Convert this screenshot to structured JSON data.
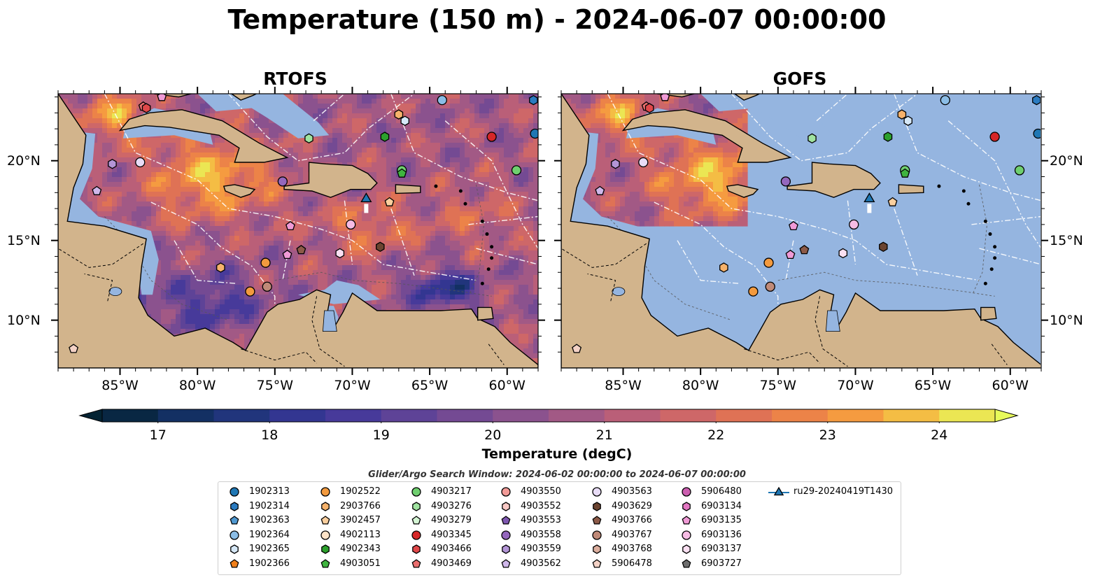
{
  "title": "Temperature (150 m) - 2024-06-07 00:00:00",
  "panels": [
    {
      "title": "RTOFS",
      "mode": "rtofs"
    },
    {
      "title": "GOFS",
      "mode": "gofs"
    }
  ],
  "map": {
    "lon_range": [
      -89,
      -58
    ],
    "lat_range": [
      7,
      24.2
    ],
    "lon_ticks": [
      "85°W",
      "80°W",
      "75°W",
      "70°W",
      "65°W",
      "60°W"
    ],
    "lat_ticks": [
      "20°N",
      "15°N",
      "10°N"
    ],
    "land_color": "#d2b48c",
    "shelf_color": "#95b5e0",
    "gofs_cutoff": {
      "lon": -77,
      "lat": 16
    }
  },
  "colorbar": {
    "label": "Temperature (degC)",
    "vmin": 16.5,
    "vmax": 24.5,
    "step": 0.5,
    "ticks": [
      "17",
      "18",
      "19",
      "20",
      "21",
      "22",
      "23",
      "24"
    ],
    "colormap": "thermal"
  },
  "search_window": "Glider/Argo Search Window: 2024-06-02 00:00:00 to 2024-06-07 00:00:00",
  "legend": [
    {
      "id": "1902313",
      "marker": "circle",
      "color": "#1f77b4"
    },
    {
      "id": "1902314",
      "marker": "hexagon",
      "color": "#2b7bc0"
    },
    {
      "id": "1902363",
      "marker": "pentagon",
      "color": "#4f98d0"
    },
    {
      "id": "1902364",
      "marker": "circle",
      "color": "#8bbde6"
    },
    {
      "id": "1902365",
      "marker": "hexagon",
      "color": "#d6e8f7"
    },
    {
      "id": "1902366",
      "marker": "pentagon",
      "color": "#f07f1a"
    },
    {
      "id": "1902522",
      "marker": "circle",
      "color": "#f39a3e"
    },
    {
      "id": "2903766",
      "marker": "hexagon",
      "color": "#f6b26b"
    },
    {
      "id": "3902457",
      "marker": "pentagon",
      "color": "#fbcf9e"
    },
    {
      "id": "4902113",
      "marker": "circle",
      "color": "#fde3c8"
    },
    {
      "id": "4902343",
      "marker": "hexagon",
      "color": "#2ca02c"
    },
    {
      "id": "4903051",
      "marker": "pentagon",
      "color": "#3fb43f"
    },
    {
      "id": "4903217",
      "marker": "circle",
      "color": "#6fcf6f"
    },
    {
      "id": "4903276",
      "marker": "hexagon",
      "color": "#a0e3a0"
    },
    {
      "id": "4903279",
      "marker": "pentagon",
      "color": "#d4f5d4"
    },
    {
      "id": "4903345",
      "marker": "circle",
      "color": "#d62728"
    },
    {
      "id": "4903466",
      "marker": "hexagon",
      "color": "#e0484a"
    },
    {
      "id": "4903469",
      "marker": "pentagon",
      "color": "#ea6e6e"
    },
    {
      "id": "4903550",
      "marker": "circle",
      "color": "#f29a97"
    },
    {
      "id": "4903552",
      "marker": "hexagon",
      "color": "#f8c8c4"
    },
    {
      "id": "4903553",
      "marker": "pentagon",
      "color": "#7e57b0"
    },
    {
      "id": "4903558",
      "marker": "circle",
      "color": "#9467bd"
    },
    {
      "id": "4903559",
      "marker": "hexagon",
      "color": "#b395d6"
    },
    {
      "id": "4903562",
      "marker": "pentagon",
      "color": "#cfb7ea"
    },
    {
      "id": "4903563",
      "marker": "circle",
      "color": "#e8dcf6"
    },
    {
      "id": "4903629",
      "marker": "hexagon",
      "color": "#6b4430"
    },
    {
      "id": "4903766",
      "marker": "pentagon",
      "color": "#8c5a48"
    },
    {
      "id": "4903767",
      "marker": "circle",
      "color": "#c08a78"
    },
    {
      "id": "4903768",
      "marker": "hexagon",
      "color": "#dcae9e"
    },
    {
      "id": "5906478",
      "marker": "pentagon",
      "color": "#f4d2c6"
    },
    {
      "id": "5906480",
      "marker": "circle",
      "color": "#cc5eb0"
    },
    {
      "id": "6903134",
      "marker": "hexagon",
      "color": "#e377c2"
    },
    {
      "id": "6903135",
      "marker": "pentagon",
      "color": "#f09ad6"
    },
    {
      "id": "6903136",
      "marker": "circle",
      "color": "#f6bce4"
    },
    {
      "id": "6903137",
      "marker": "hexagon",
      "color": "#fbe0f2"
    },
    {
      "id": "6903727",
      "marker": "pentagon",
      "color": "#6e6e6e"
    },
    {
      "id": "ru29-20240419T1430",
      "marker": "triangle-line",
      "color": "#1f77b4"
    }
  ],
  "floats": [
    {
      "lon": -83.5,
      "lat": 23.4,
      "marker": "pentagon",
      "color": "#ea6e6e"
    },
    {
      "lon": -83.3,
      "lat": 23.3,
      "marker": "hexagon",
      "color": "#e0484a"
    },
    {
      "lon": -82.3,
      "lat": 24.0,
      "marker": "pentagon",
      "color": "#f09ad6"
    },
    {
      "lon": -64.2,
      "lat": 23.8,
      "marker": "circle",
      "color": "#8bbde6"
    },
    {
      "lon": -58.3,
      "lat": 23.8,
      "marker": "hexagon",
      "color": "#2b7bc0"
    },
    {
      "lon": -67.0,
      "lat": 22.9,
      "marker": "hexagon",
      "color": "#f6b26b"
    },
    {
      "lon": -66.6,
      "lat": 22.5,
      "marker": "hexagon",
      "color": "#d6e8f7"
    },
    {
      "lon": -58.2,
      "lat": 21.7,
      "marker": "circle",
      "color": "#1f77b4"
    },
    {
      "lon": -61.0,
      "lat": 21.5,
      "marker": "circle",
      "color": "#d62728"
    },
    {
      "lon": -72.8,
      "lat": 21.4,
      "marker": "hexagon",
      "color": "#a0e3a0"
    },
    {
      "lon": -67.9,
      "lat": 21.5,
      "marker": "hexagon",
      "color": "#2ca02c"
    },
    {
      "lon": -85.5,
      "lat": 19.8,
      "marker": "hexagon",
      "color": "#b395d6"
    },
    {
      "lon": -83.7,
      "lat": 19.9,
      "marker": "circle",
      "color": "#e8dcf6"
    },
    {
      "lon": -66.8,
      "lat": 19.4,
      "marker": "circle",
      "color": "#6fcf6f"
    },
    {
      "lon": -66.8,
      "lat": 19.2,
      "marker": "pentagon",
      "color": "#3fb43f"
    },
    {
      "lon": -59.4,
      "lat": 19.4,
      "marker": "circle",
      "color": "#6fcf6f"
    },
    {
      "lon": -74.5,
      "lat": 18.7,
      "marker": "circle",
      "color": "#9467bd"
    },
    {
      "lon": -86.5,
      "lat": 18.1,
      "marker": "pentagon",
      "color": "#cfb7ea"
    },
    {
      "lon": -67.6,
      "lat": 17.4,
      "marker": "pentagon",
      "color": "#fbcf9e"
    },
    {
      "lon": -74.0,
      "lat": 15.9,
      "marker": "pentagon",
      "color": "#f09ad6"
    },
    {
      "lon": -70.1,
      "lat": 16.0,
      "marker": "circle",
      "color": "#f6bce4"
    },
    {
      "lon": -73.3,
      "lat": 14.4,
      "marker": "pentagon",
      "color": "#8c5a48"
    },
    {
      "lon": -74.2,
      "lat": 14.1,
      "marker": "pentagon",
      "color": "#f09ad6"
    },
    {
      "lon": -70.8,
      "lat": 14.2,
      "marker": "hexagon",
      "color": "#fbe0f2"
    },
    {
      "lon": -68.2,
      "lat": 14.6,
      "marker": "hexagon",
      "color": "#6b4430"
    },
    {
      "lon": -75.6,
      "lat": 13.6,
      "marker": "circle",
      "color": "#f39a3e"
    },
    {
      "lon": -78.5,
      "lat": 13.3,
      "marker": "hexagon",
      "color": "#f6b26b"
    },
    {
      "lon": -76.6,
      "lat": 11.8,
      "marker": "circle",
      "color": "#f39a3e"
    },
    {
      "lon": -75.5,
      "lat": 12.1,
      "marker": "circle",
      "color": "#c08a78"
    },
    {
      "lon": -88.0,
      "lat": 8.2,
      "marker": "pentagon",
      "color": "#f4d2c6"
    }
  ],
  "glider": {
    "lon": -69.1,
    "lat": 17.6,
    "marker": "triangle",
    "color": "#1f77b4"
  }
}
